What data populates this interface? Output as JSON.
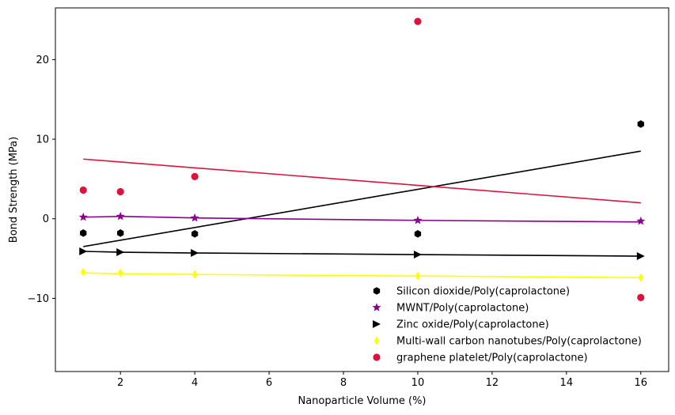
{
  "chart_data": {
    "type": "scatter",
    "title": "",
    "xlabel": "Nanoparticle Volume (%)",
    "ylabel": "Bond Strength (MPa)",
    "xlim": [
      0.25,
      16.75
    ],
    "ylim": [
      -19.2,
      26.5
    ],
    "xticks": [
      2,
      4,
      6,
      8,
      10,
      12,
      14,
      16
    ],
    "yticks": [
      -10,
      0,
      10,
      20
    ],
    "legend_position": "lower-right",
    "grid": false,
    "series": [
      {
        "name": "Silicon dioxide/Poly(caprolactone)",
        "color": "#000000",
        "marker": "hexagon",
        "points": [
          [
            1,
            -1.8
          ],
          [
            2,
            -1.8
          ],
          [
            4,
            -1.9
          ],
          [
            10,
            -1.9
          ],
          [
            16,
            11.9
          ]
        ],
        "fit": [
          [
            1,
            -3.5
          ],
          [
            16,
            8.5
          ]
        ]
      },
      {
        "name": "MWNT/Poly(caprolactone)",
        "color": "#8b008b",
        "marker": "star",
        "points": [
          [
            1,
            0.2
          ],
          [
            2,
            0.3
          ],
          [
            4,
            0.1
          ],
          [
            10,
            -0.2
          ],
          [
            16,
            -0.3
          ]
        ],
        "fit": [
          [
            1,
            0.2
          ],
          [
            2,
            0.3
          ],
          [
            4,
            0.1
          ],
          [
            10,
            -0.2
          ],
          [
            16,
            -0.4
          ]
        ]
      },
      {
        "name": "Zinc oxide/Poly(caprolactone)",
        "color": "#000000",
        "marker": "triangle-right",
        "points": [
          [
            1,
            -4.1
          ],
          [
            2,
            -4.2
          ],
          [
            4,
            -4.3
          ],
          [
            10,
            -4.5
          ],
          [
            16,
            -4.7
          ]
        ],
        "fit": [
          [
            1,
            -4.1
          ],
          [
            2,
            -4.2
          ],
          [
            4,
            -4.3
          ],
          [
            10,
            -4.5
          ],
          [
            16,
            -4.7
          ]
        ]
      },
      {
        "name": "Multi-wall carbon nanotubes/Poly(caprolactone)",
        "color": "#ffff00",
        "marker": "thin-diamond",
        "points": [
          [
            1,
            -6.7
          ],
          [
            2,
            -6.8
          ],
          [
            4,
            -7.0
          ],
          [
            10,
            -7.2
          ],
          [
            16,
            -7.4
          ]
        ],
        "fit": [
          [
            1,
            -6.8
          ],
          [
            2,
            -6.9
          ],
          [
            4,
            -7.0
          ],
          [
            10,
            -7.2
          ],
          [
            16,
            -7.4
          ]
        ]
      },
      {
        "name": "graphene platelet/Poly(caprolactone)",
        "color": "#dc143c",
        "marker": "circle",
        "points": [
          [
            1,
            3.6
          ],
          [
            2,
            3.4
          ],
          [
            4,
            5.3
          ],
          [
            10,
            24.8
          ],
          [
            16,
            -9.9
          ]
        ],
        "fit": [
          [
            1,
            7.5
          ],
          [
            16,
            2.0
          ]
        ]
      }
    ]
  }
}
